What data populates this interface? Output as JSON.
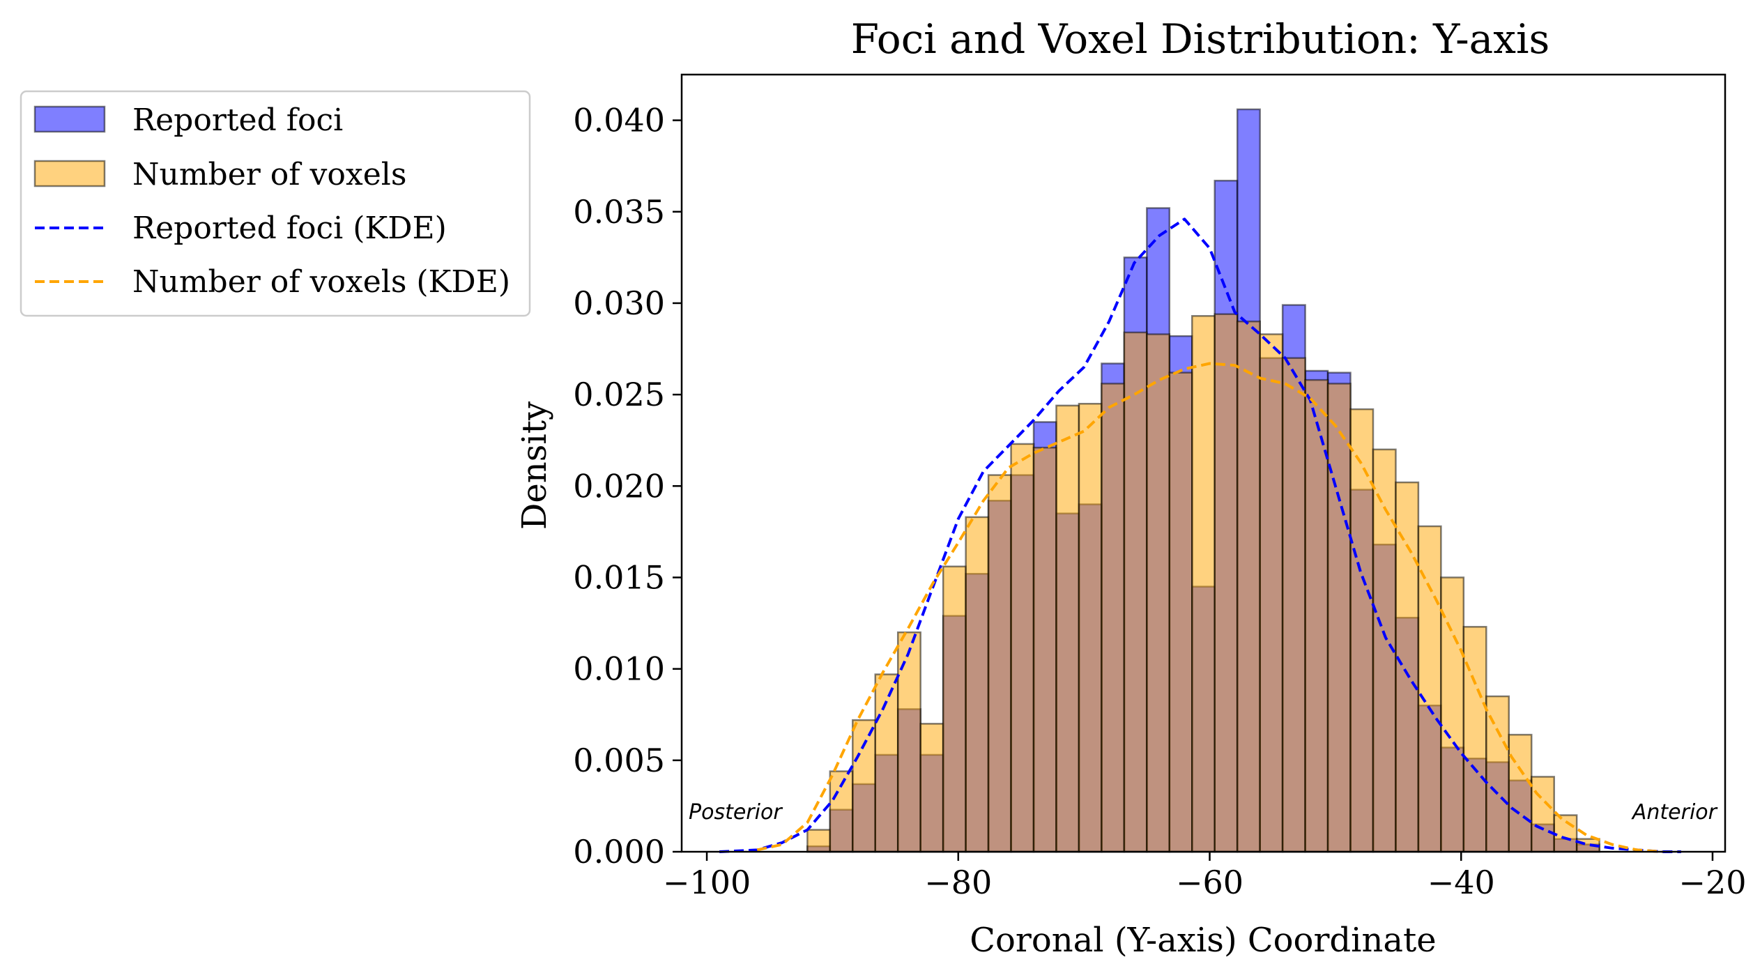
{
  "chart_data": {
    "type": "bar",
    "title": "Foci and Voxel Distribution: Y-axis",
    "xlabel": "Coronal (Y-axis) Coordinate",
    "ylabel": "Density",
    "xlim": [
      -102,
      -19
    ],
    "ylim": [
      0,
      0.0425
    ],
    "xticks": [
      -100,
      -80,
      -60,
      -40,
      -20
    ],
    "xtick_labels": [
      "−100",
      "−80",
      "−60",
      "−40",
      "−20"
    ],
    "yticks": [
      0,
      0.005,
      0.01,
      0.015,
      0.02,
      0.025,
      0.03,
      0.035,
      0.04
    ],
    "ytick_labels": [
      "0.000",
      "0.005",
      "0.010",
      "0.015",
      "0.020",
      "0.025",
      "0.030",
      "0.035",
      "0.040"
    ],
    "grid": false,
    "legend_position": "outside upper-left",
    "bin_start": -92,
    "bin_width": 1.8,
    "colors": {
      "foci": "#0000ff",
      "voxels": "#ffa500",
      "edge": "#000000"
    },
    "series": [
      {
        "name": "Reported foci",
        "kind": "histogram",
        "values": [
          0.0003,
          0.0023,
          0.0037,
          0.0053,
          0.0078,
          0.0053,
          0.0129,
          0.0152,
          0.0192,
          0.0206,
          0.0235,
          0.0185,
          0.019,
          0.0267,
          0.0325,
          0.0352,
          0.0282,
          0.0145,
          0.0367,
          0.0406,
          0.027,
          0.0299,
          0.0263,
          0.0262,
          0.0198,
          0.0168,
          0.0128,
          0.008,
          0.0057,
          0.0051,
          0.0049,
          0.0039,
          0.0015,
          0.0007,
          0.0004
        ]
      },
      {
        "name": "Number of voxels",
        "kind": "histogram",
        "values": [
          0.0012,
          0.0044,
          0.0072,
          0.0097,
          0.012,
          0.007,
          0.0156,
          0.0183,
          0.0206,
          0.0223,
          0.0221,
          0.0244,
          0.0245,
          0.0256,
          0.0284,
          0.0283,
          0.0262,
          0.0293,
          0.0294,
          0.029,
          0.0283,
          0.027,
          0.0258,
          0.0256,
          0.0242,
          0.022,
          0.0202,
          0.0178,
          0.015,
          0.0123,
          0.0085,
          0.0064,
          0.0041,
          0.002,
          0.0007
        ]
      },
      {
        "name": "Reported foci (KDE)",
        "kind": "kde",
        "style": "dashed",
        "x": [
          -99,
          -96,
          -94,
          -92,
          -90,
          -88,
          -86,
          -84,
          -82,
          -80,
          -78,
          -76,
          -74,
          -72,
          -70,
          -68,
          -66,
          -64,
          -62,
          -60,
          -58,
          -56,
          -54,
          -52,
          -50,
          -48,
          -46,
          -44,
          -42,
          -40,
          -38,
          -36,
          -34,
          -32,
          -30,
          -28,
          -26,
          -24,
          -22.5
        ],
        "y": [
          0.0,
          0.0001,
          0.0005,
          0.0012,
          0.0028,
          0.0052,
          0.0078,
          0.0108,
          0.0145,
          0.0182,
          0.0208,
          0.0222,
          0.0236,
          0.0252,
          0.0265,
          0.029,
          0.0322,
          0.0337,
          0.0346,
          0.033,
          0.0295,
          0.0283,
          0.027,
          0.0247,
          0.02,
          0.0153,
          0.0117,
          0.0094,
          0.0073,
          0.0054,
          0.0038,
          0.0024,
          0.0014,
          0.0008,
          0.0004,
          0.0002,
          0.0001,
          0.0,
          0.0
        ]
      },
      {
        "name": "Number of voxels (KDE)",
        "kind": "kde",
        "style": "dashed",
        "x": [
          -96,
          -94,
          -92,
          -90,
          -88,
          -86,
          -84,
          -82,
          -80,
          -78,
          -76,
          -74,
          -72,
          -70,
          -68,
          -66,
          -64,
          -62,
          -60,
          -58,
          -56,
          -54,
          -52,
          -50,
          -48,
          -46,
          -44,
          -42,
          -40,
          -38,
          -36,
          -34,
          -32,
          -30,
          -28,
          -26,
          -24
        ],
        "y": [
          0.0001,
          0.0004,
          0.0016,
          0.0042,
          0.0072,
          0.0098,
          0.0122,
          0.0147,
          0.0169,
          0.0192,
          0.021,
          0.0218,
          0.0224,
          0.023,
          0.0243,
          0.025,
          0.0258,
          0.0264,
          0.0267,
          0.0266,
          0.0259,
          0.0256,
          0.0248,
          0.0233,
          0.0213,
          0.0187,
          0.0164,
          0.0138,
          0.011,
          0.0078,
          0.0052,
          0.0032,
          0.0018,
          0.0009,
          0.0004,
          0.0001,
          0.0
        ]
      }
    ],
    "annotations": [
      {
        "text": "Posterior",
        "at": "left"
      },
      {
        "text": "Anterior",
        "at": "right"
      }
    ],
    "legend": [
      {
        "label": "Reported foci",
        "kind": "patch",
        "series": "foci"
      },
      {
        "label": "Number of voxels",
        "kind": "patch",
        "series": "voxels"
      },
      {
        "label": "Reported foci (KDE)",
        "kind": "line",
        "series": "foci"
      },
      {
        "label": "Number of voxels (KDE)",
        "kind": "line",
        "series": "voxels"
      }
    ]
  }
}
